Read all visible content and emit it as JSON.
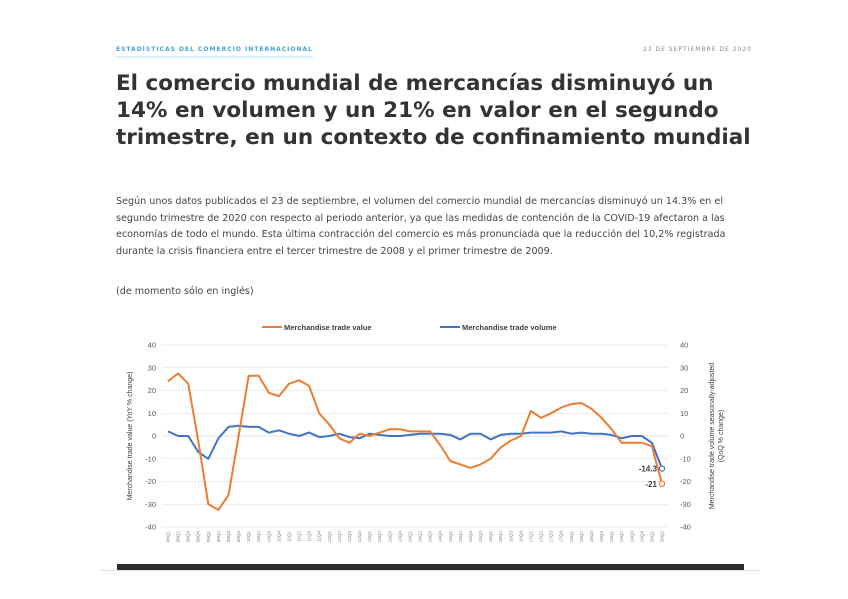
{
  "header": {
    "kicker": "ESTADÍSTICAS DEL COMERCIO INTERNACIONAL",
    "date": "23 DE SEPTIEMBRE DE 2020"
  },
  "article": {
    "title": "El comercio mundial de mercancías disminuyó un 14% en volumen y un 21% en valor en el segundo trimestre, en un contexto de confinamiento mundial",
    "body": "Según unos datos publicados el 23 de septiembre, el volumen del comercio mundial de mercancías disminuyó un 14.3% en el segundo trimestre de 2020 con respecto al periodo anterior, ya que las medidas de contención de la COVID-19 afectaron a las economías de todo el mundo. Esta última contracción del comercio es más pronunciada que la reducción del 10,2% registrada durante la crisis financiera entre el tercer trimestre de 2008 y el primer trimestre de 2009.",
    "note": "(de momento sólo en inglés)"
  },
  "colors": {
    "value_series": "#ed7d31",
    "volume_series": "#4472c4",
    "grid": "#d9d9d9",
    "axis_text": "#595959"
  },
  "chart_data": {
    "type": "line",
    "title": "",
    "legend": [
      "Merchandise trade value",
      "Merchandise trade volume"
    ],
    "legend_position": "top",
    "ylabel_left": "Merchandise trade value (YoY % change)",
    "ylabel_right": "Merchandise trade volume seasonally-adjusted (QoQ % change)",
    "ylim": [
      -40,
      40
    ],
    "yticks": [
      40,
      30,
      20,
      10,
      0,
      -10,
      -20,
      -30,
      -40
    ],
    "grid": true,
    "x": [
      "08Q1",
      "08Q2",
      "08Q3",
      "08Q4",
      "09Q1",
      "09Q2",
      "09Q3",
      "09Q4",
      "10Q1",
      "10Q2",
      "10Q3",
      "10Q4",
      "11Q1",
      "11Q2",
      "11Q3",
      "11Q4",
      "12Q1",
      "12Q2",
      "12Q3",
      "12Q4",
      "13Q1",
      "13Q2",
      "13Q3",
      "13Q4",
      "14Q1",
      "14Q2",
      "14Q3",
      "14Q4",
      "15Q1",
      "15Q2",
      "15Q3",
      "15Q4",
      "16Q1",
      "16Q2",
      "16Q3",
      "16Q4",
      "17Q1",
      "17Q2",
      "17Q3",
      "17Q4",
      "18Q1",
      "18Q2",
      "18Q3",
      "18Q4",
      "19Q1",
      "19Q2",
      "19Q3",
      "19Q4",
      "20Q1",
      "20Q2"
    ],
    "series": [
      {
        "name": "Merchandise trade value",
        "axis": "left",
        "values": [
          24,
          27.5,
          23,
          -2,
          -30,
          -32.5,
          -26,
          0,
          26.5,
          26.5,
          19,
          17.5,
          23,
          24.5,
          22,
          10,
          5,
          -1,
          -3,
          1,
          0,
          1.5,
          3,
          3,
          2,
          2,
          2,
          -4,
          -11,
          -12.5,
          -14,
          -12.5,
          -10,
          -5,
          -2,
          0,
          11,
          8,
          10,
          12.5,
          14,
          14.5,
          12,
          8,
          3,
          -3,
          -3,
          -3,
          -4.5,
          -21
        ]
      },
      {
        "name": "Merchandise trade volume",
        "axis": "right",
        "values": [
          2,
          0,
          0,
          -7,
          -10,
          -1,
          4,
          4.5,
          4,
          4,
          1.5,
          2.5,
          1,
          0,
          1.5,
          -0.5,
          0,
          1,
          -0.5,
          -1,
          1,
          0.5,
          0,
          0,
          0.5,
          1,
          1,
          1,
          0.5,
          -1.5,
          1,
          1,
          -1.5,
          0.5,
          1,
          1,
          1.5,
          1.5,
          1.5,
          2,
          1,
          1.5,
          1,
          1,
          0.5,
          -1,
          0,
          0,
          -3,
          -14.3
        ]
      }
    ],
    "annotations": [
      {
        "text": "-14.3",
        "series": "Merchandise trade volume",
        "x": "20Q2"
      },
      {
        "text": "-21",
        "series": "Merchandise trade value",
        "x": "20Q2"
      }
    ]
  }
}
